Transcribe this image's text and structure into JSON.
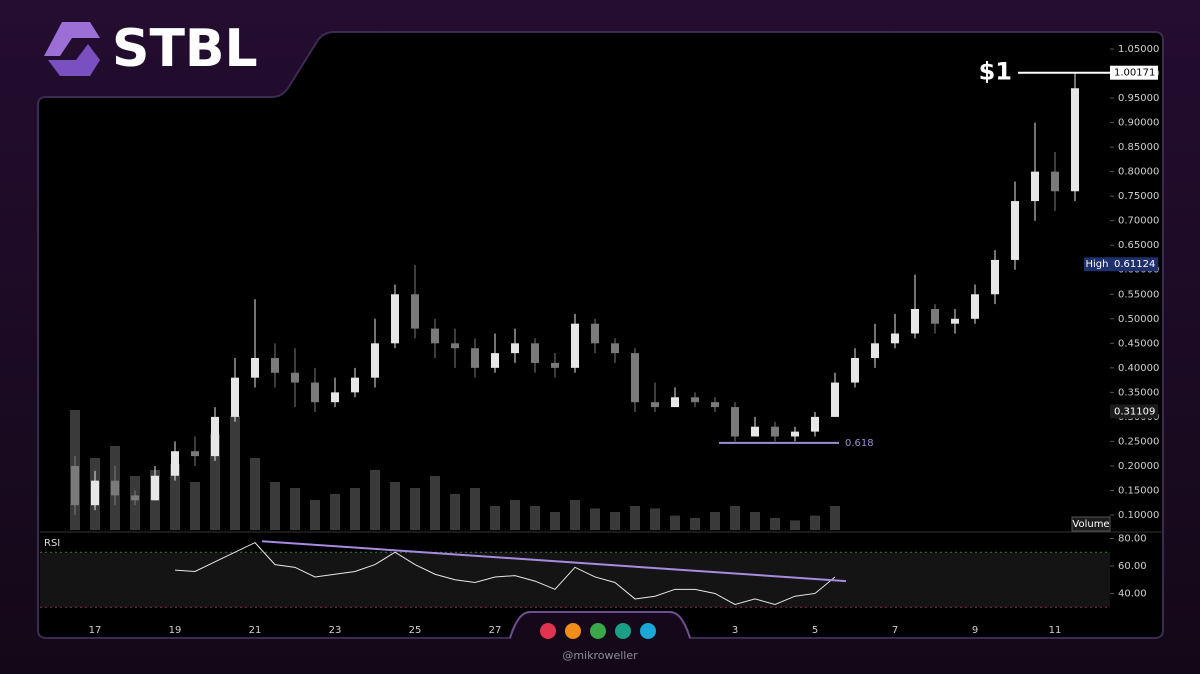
{
  "logo": "STBL",
  "handle": "@mikroweller",
  "chart_data": [
    {
      "type": "candlestick",
      "x": [
        -0.5,
        0,
        0.5,
        1,
        1.5,
        2,
        2.5,
        3,
        3.5,
        4,
        4.5,
        5,
        5.5,
        6,
        6.5,
        7,
        7.5,
        8,
        8.5,
        9,
        9.5,
        10,
        10.5,
        11,
        11.5,
        12,
        12.5,
        13,
        13.5,
        14,
        14.5,
        15,
        15.5,
        16,
        16.5,
        17,
        17.5,
        18,
        18.5,
        19,
        19.5,
        20,
        20.5,
        21,
        21.5,
        22,
        22.5,
        23,
        23.5,
        24,
        24.5
      ],
      "open": [
        0.2,
        0.12,
        0.17,
        0.14,
        0.13,
        0.18,
        0.23,
        0.22,
        0.3,
        0.38,
        0.42,
        0.39,
        0.37,
        0.33,
        0.35,
        0.38,
        0.45,
        0.55,
        0.48,
        0.45,
        0.44,
        0.4,
        0.43,
        0.45,
        0.41,
        0.4,
        0.49,
        0.45,
        0.43,
        0.33,
        0.32,
        0.34,
        0.33,
        0.32,
        0.26,
        0.28,
        0.26,
        0.27,
        0.3,
        0.37,
        0.42,
        0.45,
        0.47,
        0.52,
        0.49,
        0.5,
        0.55,
        0.62,
        0.74,
        0.8,
        0.76
      ],
      "high": [
        0.22,
        0.19,
        0.2,
        0.15,
        0.2,
        0.25,
        0.26,
        0.32,
        0.42,
        0.54,
        0.45,
        0.44,
        0.4,
        0.38,
        0.4,
        0.5,
        0.57,
        0.61,
        0.5,
        0.48,
        0.46,
        0.47,
        0.48,
        0.46,
        0.43,
        0.51,
        0.5,
        0.46,
        0.44,
        0.37,
        0.36,
        0.35,
        0.34,
        0.33,
        0.3,
        0.29,
        0.28,
        0.31,
        0.39,
        0.44,
        0.49,
        0.51,
        0.59,
        0.53,
        0.52,
        0.57,
        0.64,
        0.78,
        0.9,
        0.84,
        1.00171
      ],
      "low": [
        0.1,
        0.11,
        0.12,
        0.12,
        0.13,
        0.17,
        0.2,
        0.21,
        0.29,
        0.36,
        0.36,
        0.32,
        0.31,
        0.32,
        0.34,
        0.36,
        0.44,
        0.46,
        0.42,
        0.4,
        0.38,
        0.39,
        0.41,
        0.39,
        0.38,
        0.39,
        0.43,
        0.41,
        0.31,
        0.31,
        0.32,
        0.32,
        0.31,
        0.25,
        0.26,
        0.25,
        0.25,
        0.26,
        0.3,
        0.36,
        0.4,
        0.44,
        0.46,
        0.47,
        0.47,
        0.49,
        0.53,
        0.6,
        0.7,
        0.72,
        0.74
      ],
      "close": [
        0.12,
        0.17,
        0.14,
        0.13,
        0.18,
        0.23,
        0.22,
        0.3,
        0.38,
        0.42,
        0.39,
        0.37,
        0.33,
        0.35,
        0.38,
        0.45,
        0.55,
        0.48,
        0.45,
        0.44,
        0.4,
        0.43,
        0.45,
        0.41,
        0.4,
        0.49,
        0.45,
        0.43,
        0.33,
        0.32,
        0.34,
        0.33,
        0.32,
        0.26,
        0.28,
        0.26,
        0.27,
        0.3,
        0.37,
        0.42,
        0.45,
        0.47,
        0.52,
        0.49,
        0.5,
        0.55,
        0.62,
        0.74,
        0.8,
        0.76,
        0.97
      ],
      "volume": [
        100,
        60,
        70,
        45,
        50,
        55,
        40,
        80,
        95,
        60,
        40,
        35,
        25,
        30,
        35,
        50,
        40,
        35,
        45,
        30,
        35,
        20,
        25,
        20,
        15,
        25,
        18,
        15,
        20,
        18,
        12,
        10,
        15,
        20,
        15,
        10,
        8,
        12,
        20,
        null,
        null,
        null,
        null,
        null,
        null,
        null,
        null,
        null,
        null,
        null,
        null
      ],
      "volume_label": "Volume",
      "up_color": "#e6e6e6",
      "down_color": "#7a7a7a",
      "volume_color": "#3a3a3a",
      "xlim": [
        -1.375,
        25.375
      ],
      "xticks": [
        {
          "value": 0,
          "label": "17"
        },
        {
          "value": 2,
          "label": "19"
        },
        {
          "value": 4,
          "label": "21"
        },
        {
          "value": 6,
          "label": "23"
        },
        {
          "value": 8,
          "label": "25"
        },
        {
          "value": 10,
          "label": "27"
        },
        {
          "value": 16,
          "label": "3"
        },
        {
          "value": 18,
          "label": "5"
        },
        {
          "value": 20,
          "label": "7"
        },
        {
          "value": 22,
          "label": "9"
        },
        {
          "value": 24,
          "label": "11"
        }
      ],
      "ylim": [
        0.0694,
        1.0847
      ],
      "yticks": [
        {
          "value": 0.1,
          "label": "0.10000"
        },
        {
          "value": 0.15,
          "label": "0.15000"
        },
        {
          "value": 0.2,
          "label": "0.20000"
        },
        {
          "value": 0.25,
          "label": "0.25000"
        },
        {
          "value": 0.3,
          "label": "0.30000"
        },
        {
          "value": 0.35,
          "label": "0.35000"
        },
        {
          "value": 0.4,
          "label": "0.40000"
        },
        {
          "value": 0.45,
          "label": "0.45000"
        },
        {
          "value": 0.5,
          "label": "0.50000"
        },
        {
          "value": 0.55,
          "label": "0.55000"
        },
        {
          "value": 0.6,
          "label": "0.60000"
        },
        {
          "value": 0.65,
          "label": "0.65000"
        },
        {
          "value": 0.7,
          "label": "0.70000"
        },
        {
          "value": 0.75,
          "label": "0.75000"
        },
        {
          "value": 0.8,
          "label": "0.80000"
        },
        {
          "value": 0.85,
          "label": "0.85000"
        },
        {
          "value": 0.9,
          "label": "0.90000"
        },
        {
          "value": 0.95,
          "label": "0.95000"
        },
        {
          "value": 1.0,
          "label": "1.00000"
        },
        {
          "value": 1.05,
          "label": "1.05000"
        }
      ],
      "price_tags": [
        {
          "value": 1.00171,
          "color": "#ffffff",
          "text_color": "#000000",
          "note": "$1"
        },
        {
          "value": 0.61124,
          "label": "High",
          "color": "#1e2f6b",
          "text_color": "#ffffff"
        },
        {
          "value": 0.31109,
          "color": "#1c1c1c",
          "text_color": "#ffffff"
        }
      ],
      "fib_level": {
        "label": "0.618",
        "value": 0.247,
        "x": [
          15.6,
          18.6
        ],
        "color": "#9b8fd6"
      }
    },
    {
      "type": "line",
      "title": "RSI",
      "color": "#e8e8e8",
      "x": [
        -0.5,
        0,
        0.5,
        1,
        1.5,
        2,
        2.5,
        3,
        3.5,
        4,
        4.5,
        5,
        5.5,
        6,
        6.5,
        7,
        7.5,
        8,
        8.5,
        9,
        9.5,
        10,
        10.5,
        11,
        11.5,
        12,
        12.5,
        13,
        13.5,
        14,
        14.5,
        15,
        15.5,
        16,
        16.5,
        17,
        17.5,
        18,
        18.5,
        19,
        19.5,
        20,
        20.5,
        21,
        21.5,
        22,
        22.5,
        23,
        23.5,
        24,
        24.5
      ],
      "values": [
        null,
        null,
        null,
        null,
        null,
        57,
        56,
        63,
        70,
        77,
        61,
        59,
        52,
        54,
        56,
        61,
        70,
        61,
        54,
        50,
        48,
        52,
        53,
        49,
        43,
        59,
        52,
        48,
        36,
        38,
        43,
        43,
        40,
        32,
        36,
        32,
        38,
        40,
        52,
        null,
        null,
        null,
        null,
        null,
        null,
        null,
        null,
        null,
        null,
        null,
        null
      ],
      "xlim": [
        -1.375,
        25.375
      ],
      "ylim": [
        26.5,
        84
      ],
      "yticks": [
        {
          "value": 80,
          "label": "80.00"
        },
        {
          "value": 60,
          "label": "60.00"
        },
        {
          "value": 40,
          "label": "40.00"
        }
      ],
      "bands": [
        70,
        30
      ],
      "trendline": {
        "x": [
          4.175,
          18.775
        ],
        "values": [
          78,
          49
        ],
        "color": "#a78bdf"
      }
    }
  ]
}
